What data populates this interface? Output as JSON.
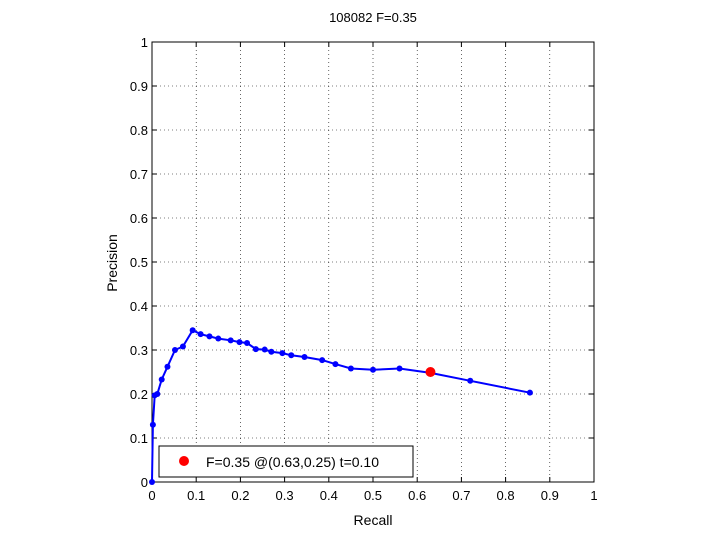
{
  "chart_data": {
    "type": "line",
    "title": "108082 F=0.35",
    "xlabel": "Recall",
    "ylabel": "Precision",
    "xlim": [
      0,
      1
    ],
    "ylim": [
      0,
      1
    ],
    "xticks": [
      "0",
      "0.1",
      "0.2",
      "0.3",
      "0.4",
      "0.5",
      "0.6",
      "0.7",
      "0.8",
      "0.9",
      "1"
    ],
    "yticks": [
      "0",
      "0.1",
      "0.2",
      "0.3",
      "0.4",
      "0.5",
      "0.6",
      "0.7",
      "0.8",
      "0.9",
      "1"
    ],
    "grid": true,
    "grid_style": "dotted",
    "series": [
      {
        "color": "#0000ff",
        "marker": "dot",
        "points": [
          [
            0.0,
            0.0
          ],
          [
            0.002,
            0.13
          ],
          [
            0.006,
            0.197
          ],
          [
            0.012,
            0.2
          ],
          [
            0.022,
            0.233
          ],
          [
            0.035,
            0.262
          ],
          [
            0.052,
            0.3
          ],
          [
            0.07,
            0.308
          ],
          [
            0.092,
            0.345
          ],
          [
            0.11,
            0.336
          ],
          [
            0.13,
            0.331
          ],
          [
            0.15,
            0.326
          ],
          [
            0.178,
            0.322
          ],
          [
            0.198,
            0.318
          ],
          [
            0.215,
            0.316
          ],
          [
            0.235,
            0.302
          ],
          [
            0.255,
            0.301
          ],
          [
            0.27,
            0.296
          ],
          [
            0.295,
            0.293
          ],
          [
            0.315,
            0.288
          ],
          [
            0.345,
            0.284
          ],
          [
            0.385,
            0.277
          ],
          [
            0.415,
            0.268
          ],
          [
            0.45,
            0.258
          ],
          [
            0.5,
            0.255
          ],
          [
            0.56,
            0.258
          ],
          [
            0.63,
            0.248
          ],
          [
            0.72,
            0.23
          ],
          [
            0.855,
            0.203
          ]
        ]
      }
    ],
    "highlight": {
      "x": 0.63,
      "y": 0.25,
      "color": "#ff0000"
    },
    "legend": {
      "label": "F=0.35 @(0.63,0.25) t=0.10",
      "position": "bottom-left"
    }
  }
}
